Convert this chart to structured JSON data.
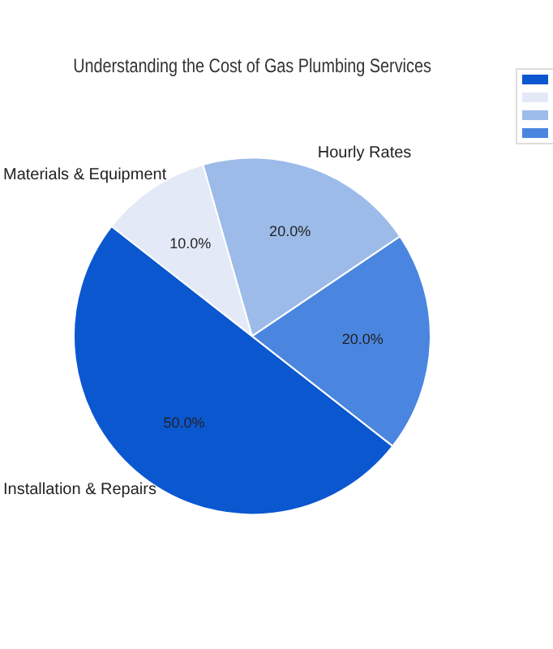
{
  "chart_data": {
    "type": "pie",
    "title": "Understanding the Cost of Gas Plumbing Services",
    "categories": [
      "Installation & Repairs",
      "Materials & Equipment",
      "Hourly Rates",
      null
    ],
    "values": [
      50,
      10,
      20,
      20
    ],
    "value_labels": [
      "50.0%",
      "10.0%",
      "20.0%",
      "20.0%"
    ],
    "colors": [
      "#0b57d0",
      "#e3e9f7",
      "#9dbbe9",
      "#4a86e0"
    ]
  }
}
